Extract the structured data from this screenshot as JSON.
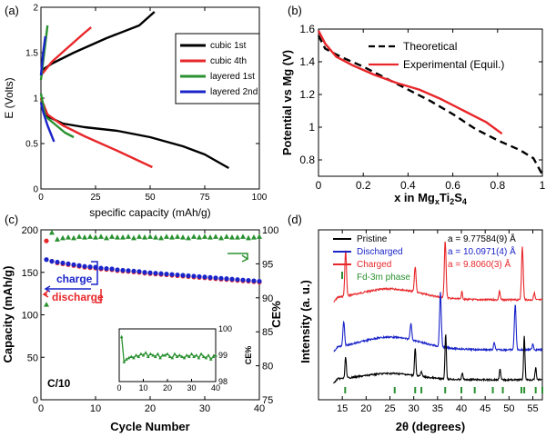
{
  "panels": [
    {
      "id": "a",
      "label": "(a)"
    },
    {
      "id": "b",
      "label": "(b)"
    },
    {
      "id": "c",
      "label": "(c)"
    },
    {
      "id": "d",
      "label": "(d)"
    }
  ],
  "chart_data": [
    {
      "panel": "(a)",
      "type": "line",
      "xlabel": "specific capacity (mAh/g)",
      "ylabel": "E (Volts)",
      "xlim": [
        0,
        100
      ],
      "ylim": [
        0,
        2
      ],
      "xticks": [
        0,
        25,
        50,
        75,
        100
      ],
      "yticks": [
        0,
        0.5,
        1,
        1.5,
        2
      ],
      "legend_position": "top-right",
      "series": [
        {
          "name": "cubic 1st",
          "color": "#000000",
          "segments": [
            [
              [
                0,
                1.0
              ],
              [
                3,
                0.8
              ],
              [
                10,
                0.72
              ],
              [
                20,
                0.68
              ],
              [
                35,
                0.64
              ],
              [
                50,
                0.57
              ],
              [
                65,
                0.47
              ],
              [
                75,
                0.38
              ],
              [
                86,
                0.23
              ]
            ],
            [
              [
                0,
                1.3
              ],
              [
                5,
                1.38
              ],
              [
                15,
                1.5
              ],
              [
                30,
                1.66
              ],
              [
                45,
                1.8
              ],
              [
                52,
                1.95
              ]
            ]
          ]
        },
        {
          "name": "cubic 4th",
          "color": "#e8272a",
          "segments": [
            [
              [
                0,
                1.0
              ],
              [
                3,
                0.82
              ],
              [
                10,
                0.7
              ],
              [
                20,
                0.58
              ],
              [
                35,
                0.42
              ],
              [
                51,
                0.24
              ]
            ],
            [
              [
                0,
                1.25
              ],
              [
                5,
                1.4
              ],
              [
                12,
                1.55
              ],
              [
                20,
                1.72
              ],
              [
                23,
                1.78
              ]
            ]
          ]
        },
        {
          "name": "layered 1st",
          "color": "#2a9130",
          "segments": [
            [
              [
                0,
                1.05
              ],
              [
                2,
                0.8
              ],
              [
                6,
                0.72
              ],
              [
                11,
                0.62
              ],
              [
                15,
                0.57
              ]
            ],
            [
              [
                0,
                1.2
              ],
              [
                1,
                1.4
              ],
              [
                2,
                1.6
              ],
              [
                3,
                1.8
              ]
            ]
          ]
        },
        {
          "name": "layered 2nd",
          "color": "#1a24c9",
          "segments": [
            [
              [
                0,
                0.95
              ],
              [
                1,
                0.85
              ],
              [
                3,
                0.7
              ],
              [
                6,
                0.52
              ]
            ],
            [
              [
                0,
                1.25
              ],
              [
                1,
                1.5
              ],
              [
                2,
                1.68
              ]
            ]
          ]
        }
      ]
    },
    {
      "panel": "(b)",
      "type": "line",
      "xlabel_parts": [
        "x in Mg",
        "x",
        "Ti",
        "2",
        "S",
        "4"
      ],
      "ylabel": "Potential vs Mg (V)",
      "xlim": [
        0,
        1
      ],
      "ylim": [
        0.7,
        1.6
      ],
      "xticks": [
        0,
        0.2,
        0.4,
        0.6,
        0.8,
        1
      ],
      "yticks": [
        0.8,
        1,
        1.2,
        1.4,
        1.6
      ],
      "legend_position": "top-right",
      "series": [
        {
          "name": "Theoretical",
          "color": "#000000",
          "dashed": true,
          "points": [
            [
              0,
              1.56
            ],
            [
              0.03,
              1.48
            ],
            [
              0.1,
              1.43
            ],
            [
              0.2,
              1.37
            ],
            [
              0.3,
              1.3
            ],
            [
              0.4,
              1.23
            ],
            [
              0.5,
              1.16
            ],
            [
              0.6,
              1.08
            ],
            [
              0.7,
              0.99
            ],
            [
              0.8,
              0.92
            ],
            [
              0.9,
              0.86
            ],
            [
              0.96,
              0.81
            ],
            [
              1.0,
              0.71
            ]
          ]
        },
        {
          "name": "Experimental (Equil.)",
          "color": "#e8272a",
          "points": [
            [
              0,
              1.59
            ],
            [
              0.03,
              1.51
            ],
            [
              0.08,
              1.43
            ],
            [
              0.15,
              1.38
            ],
            [
              0.25,
              1.32
            ],
            [
              0.35,
              1.27
            ],
            [
              0.45,
              1.23
            ],
            [
              0.55,
              1.17
            ],
            [
              0.65,
              1.1
            ],
            [
              0.75,
              1.03
            ],
            [
              0.82,
              0.96
            ]
          ]
        }
      ]
    },
    {
      "panel": "(c)",
      "type": "scatter",
      "xlabel": "Cycle Number",
      "ylabel": "Capacity (mAh/g)",
      "ylabel_right": "CE%",
      "xlim": [
        0,
        40
      ],
      "ylim": [
        0,
        200
      ],
      "ylim_right": [
        75,
        100
      ],
      "xticks": [
        0,
        10,
        20,
        30,
        40
      ],
      "yticks": [
        0,
        50,
        100,
        150,
        200
      ],
      "yticks_right": [
        75,
        80,
        85,
        90,
        95,
        100
      ],
      "annotations": {
        "rate": "C/10"
      },
      "series": [
        {
          "name": "charge",
          "color": "#1a24c9",
          "marker": "circle",
          "values": [
            165,
            163,
            162,
            161,
            160,
            159,
            158,
            157,
            156.5,
            156,
            155,
            154.5,
            154,
            153,
            152.5,
            152,
            151.5,
            151,
            150,
            149.5,
            149,
            148.5,
            148,
            147.5,
            147,
            146.5,
            146,
            145.5,
            145,
            144.5,
            144,
            143.5,
            143,
            142.5,
            142,
            141.5,
            141,
            140.5,
            140,
            139.5
          ]
        },
        {
          "name": "discharge",
          "color": "#e8272a",
          "marker": "circle",
          "values": [
            187,
            163,
            161,
            160,
            159,
            158,
            157,
            156,
            155.5,
            155,
            154,
            153.5,
            153,
            152,
            151.5,
            151,
            150.5,
            150,
            149,
            148.5,
            148,
            147.5,
            147,
            146.5,
            146,
            145.5,
            145,
            144.5,
            144,
            143.5,
            143,
            142.5,
            142,
            141.5,
            141,
            140.5,
            140,
            139.5,
            139,
            138.5
          ]
        },
        {
          "name": "CE%",
          "color": "#2a9130",
          "marker": "triangle",
          "axis": "right",
          "values": [
            89,
            99.6,
            98.6,
            98.8,
            98.9,
            98.8,
            99,
            98.9,
            99,
            98.9,
            99,
            98.8,
            99,
            98.9,
            98.9,
            99,
            98.8,
            99,
            98.9,
            99,
            98.9,
            98.8,
            99,
            98.9,
            99,
            98.9,
            98.8,
            99,
            98.9,
            99,
            98.9,
            99,
            98.8,
            99,
            98.9,
            98.9,
            99,
            98.8,
            98.9,
            99
          ]
        }
      ],
      "inset": {
        "xlim": [
          0,
          40
        ],
        "ylim": [
          98,
          100
        ],
        "xticks": [
          0,
          10,
          20,
          30,
          40
        ],
        "yticks": [
          98,
          99,
          100
        ],
        "ylabel": "CE%",
        "values": [
          99.7,
          98.75,
          98.85,
          98.9,
          98.95,
          98.9,
          99.0,
          98.95,
          99.05,
          99.0,
          99.1,
          98.95,
          99.05,
          99.0,
          98.95,
          99.05,
          98.9,
          99.0,
          99.0,
          99.05,
          98.95,
          98.9,
          99.05,
          98.95,
          99.0,
          98.95,
          98.9,
          99.0,
          98.95,
          99.05,
          98.95,
          99.0,
          98.9,
          99.05,
          98.95,
          98.9,
          99.0,
          98.85,
          98.95,
          99.0
        ]
      }
    },
    {
      "panel": "(d)",
      "type": "line",
      "xlabel": "2θ (degrees)",
      "ylabel": "Intensity (a. u.)",
      "xlim": [
        10,
        57
      ],
      "xticks": [
        15,
        20,
        25,
        30,
        35,
        40,
        45,
        50,
        55
      ],
      "legend_position": "top",
      "series": [
        {
          "name": "Pristine",
          "color": "#000000",
          "lattice": "a = 9.77584(9) Å"
        },
        {
          "name": "Discharged",
          "color": "#1a24c9",
          "lattice": "a = 10.0971(4) Å"
        },
        {
          "name": "Charged",
          "color": "#e8272a",
          "lattice": "a = 9.8060(3) Å"
        },
        {
          "name": "Fd-3m phase",
          "color": "#2a9130",
          "marker": "tick"
        }
      ],
      "phase_ticks": [
        15.6,
        26.0,
        30.3,
        31.6,
        36.6,
        40.0,
        42.8,
        46.6,
        48.7,
        52.6,
        53.2,
        55.6,
        57.0
      ]
    }
  ]
}
